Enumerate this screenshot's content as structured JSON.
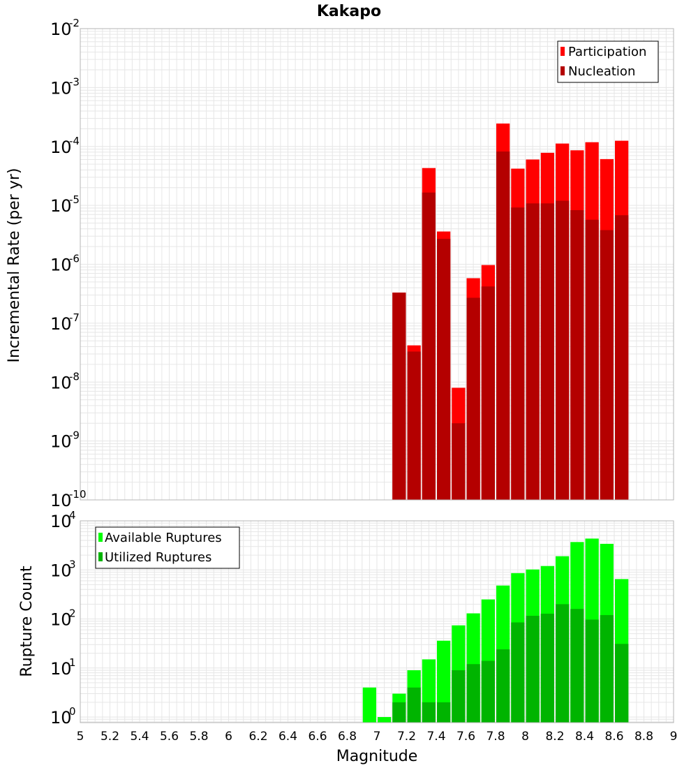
{
  "title": "Kakapo",
  "colors": {
    "participation": "#ff0000",
    "nucleation": "#b40000",
    "available": "#00ff00",
    "utilized": "#00b400",
    "grid": "#e6e6e6",
    "frame": "#b4b4b4"
  },
  "chart_data": [
    {
      "type": "bar",
      "log_y": true,
      "ylabel": "Incremental Rate (per yr)",
      "xlabel": "",
      "xlim": [
        5,
        9
      ],
      "ylim": [
        1e-10,
        0.01
      ],
      "y_ticks": [
        {
          "base": "10",
          "exp": "-2"
        },
        {
          "base": "10",
          "exp": "-3"
        },
        {
          "base": "10",
          "exp": "-4"
        },
        {
          "base": "10",
          "exp": "-5"
        },
        {
          "base": "10",
          "exp": "-6"
        },
        {
          "base": "10",
          "exp": "-7"
        },
        {
          "base": "10",
          "exp": "-8"
        },
        {
          "base": "10",
          "exp": "-9"
        },
        {
          "base": "10",
          "exp": "-10"
        }
      ],
      "grid": true,
      "legend_position": "top-right",
      "x": [
        7.15,
        7.25,
        7.35,
        7.45,
        7.55,
        7.65,
        7.75,
        7.85,
        7.95,
        8.05,
        8.15,
        8.25,
        8.35,
        8.45,
        8.55,
        8.65
      ],
      "series": [
        {
          "name": "Participation",
          "values": [
            3.3e-07,
            4.2e-08,
            4.3e-05,
            3.6e-06,
            8e-09,
            5.8e-07,
            9.7e-07,
            0.000245,
            4.2e-05,
            6e-05,
            7.8e-05,
            0.000112,
            8.6e-05,
            0.000118,
            6.1e-05,
            0.000125
          ]
        },
        {
          "name": "Nucleation",
          "values": [
            3.3e-07,
            3.3e-08,
            1.65e-05,
            2.7e-06,
            2e-09,
            2.7e-07,
            4.2e-07,
            8.2e-05,
            9.2e-06,
            1.08e-05,
            1.08e-05,
            1.2e-05,
            8.3e-06,
            5.7e-06,
            3.8e-06,
            6.8e-06
          ]
        }
      ]
    },
    {
      "type": "bar",
      "log_y": true,
      "ylabel": "Rupture Count",
      "xlabel": "Magnitude",
      "xlim": [
        5,
        9
      ],
      "ylim": [
        0.77,
        10000
      ],
      "y_ticks": [
        {
          "base": "10",
          "exp": "4",
          "value": 10000
        },
        {
          "base": "10",
          "exp": "3",
          "value": 1000
        },
        {
          "base": "10",
          "exp": "2",
          "value": 100
        },
        {
          "base": "10",
          "exp": "1",
          "value": 10
        },
        {
          "base": "10",
          "exp": "0",
          "value": 1
        }
      ],
      "x_ticks": [
        "5",
        "5.2",
        "5.4",
        "5.6",
        "5.8",
        "6",
        "6.2",
        "6.4",
        "6.6",
        "6.8",
        "7",
        "7.2",
        "7.4",
        "7.6",
        "7.8",
        "8",
        "8.2",
        "8.4",
        "8.6",
        "8.8",
        "9"
      ],
      "grid": true,
      "legend_position": "top-left",
      "x": [
        6.95,
        7.05,
        7.15,
        7.25,
        7.35,
        7.45,
        7.55,
        7.65,
        7.75,
        7.85,
        7.95,
        8.05,
        8.15,
        8.25,
        8.35,
        8.45,
        8.55,
        8.65
      ],
      "series": [
        {
          "name": "Available Ruptures",
          "values": [
            4,
            1,
            3,
            9,
            15,
            36,
            74,
            130,
            250,
            480,
            860,
            1020,
            1200,
            1900,
            3700,
            4350,
            3400,
            650
          ]
        },
        {
          "name": "Utilized Ruptures",
          "values": [
            null,
            null,
            2,
            4,
            2,
            2,
            9,
            12,
            14,
            24,
            85,
            116,
            128,
            200,
            160,
            97,
            120,
            31
          ]
        }
      ]
    }
  ]
}
